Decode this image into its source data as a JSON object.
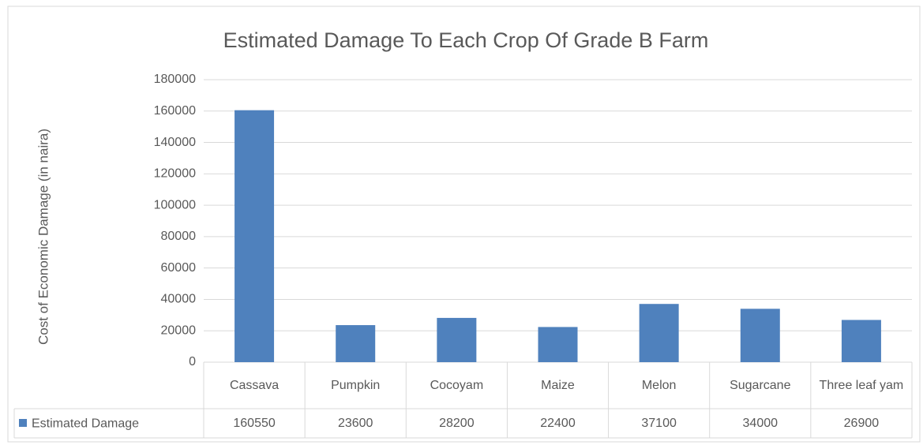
{
  "chart_data": {
    "type": "bar",
    "title": "Estimated Damage To Each Crop Of Grade B Farm",
    "y_label": "Cost of Economic Damage (in naira)",
    "categories": [
      "Cassava",
      "Pumpkin",
      "Cocoyam",
      "Maize",
      "Melon",
      "Sugarcane",
      "Three leaf yam"
    ],
    "series": [
      {
        "name": "Estimated Damage",
        "color": "#4f81bd",
        "values": [
          160550,
          23600,
          28200,
          22400,
          37100,
          34000,
          26900
        ]
      }
    ],
    "ylim": [
      0,
      180000
    ],
    "yticks": [
      0,
      20000,
      40000,
      60000,
      80000,
      100000,
      120000,
      140000,
      160000,
      180000
    ],
    "grid": true
  }
}
